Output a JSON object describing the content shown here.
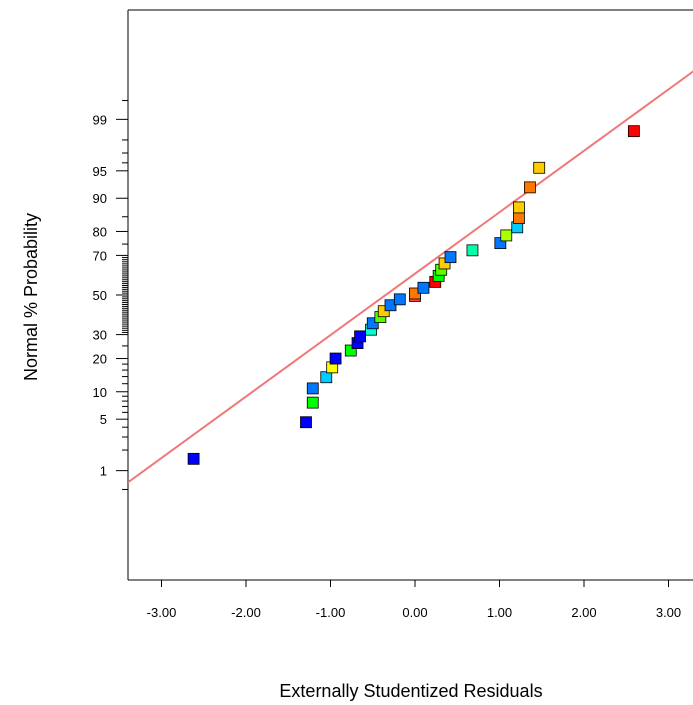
{
  "chart_data": {
    "type": "scatter",
    "title": "",
    "xlabel": "Externally Studentized Residuals",
    "ylabel": "Normal % Probability",
    "xlim": [
      -3.4,
      3.3
    ],
    "x_ticks": [
      {
        "value": -3,
        "label": "-3.00"
      },
      {
        "value": -2,
        "label": "-2.00"
      },
      {
        "value": -1,
        "label": "-1.00"
      },
      {
        "value": 0,
        "label": "0.00"
      },
      {
        "value": 1,
        "label": "1.00"
      },
      {
        "value": 2,
        "label": "2.00"
      },
      {
        "value": 3,
        "label": "3.00"
      }
    ],
    "y_scale": "normal-probability",
    "ylim": [
      0.2,
      99.94
    ],
    "y_ticks": [
      {
        "value": 1,
        "label": "1"
      },
      {
        "value": 5,
        "label": "5"
      },
      {
        "value": 10,
        "label": "10"
      },
      {
        "value": 20,
        "label": "20"
      },
      {
        "value": 30,
        "label": "30"
      },
      {
        "value": 50,
        "label": "50"
      },
      {
        "value": 70,
        "label": "70"
      },
      {
        "value": 80,
        "label": "80"
      },
      {
        "value": 90,
        "label": "90"
      },
      {
        "value": 95,
        "label": "95"
      },
      {
        "value": 99,
        "label": "99"
      }
    ],
    "reference_line": {
      "color": "#f07878",
      "x": [
        -3.4,
        3.3
      ],
      "y": [
        0.65,
        99.85
      ]
    },
    "marker": "square",
    "points": [
      {
        "x": -2.62,
        "y": 1.5,
        "color": "#0000ff"
      },
      {
        "x": -1.29,
        "y": 4.6,
        "color": "#0000ff"
      },
      {
        "x": -1.21,
        "y": 7.7,
        "color": "#00ff00"
      },
      {
        "x": -1.21,
        "y": 10.8,
        "color": "#0077ff"
      },
      {
        "x": -1.05,
        "y": 13.8,
        "color": "#00ccff"
      },
      {
        "x": -0.98,
        "y": 16.9,
        "color": "#ffff00"
      },
      {
        "x": -0.94,
        "y": 20.0,
        "color": "#0000ff"
      },
      {
        "x": -0.76,
        "y": 23.1,
        "color": "#00ff00"
      },
      {
        "x": -0.68,
        "y": 26.2,
        "color": "#0000ff"
      },
      {
        "x": -0.65,
        "y": 29.2,
        "color": "#0000ff"
      },
      {
        "x": -0.52,
        "y": 32.3,
        "color": "#00ffcc"
      },
      {
        "x": -0.5,
        "y": 35.4,
        "color": "#0077ff"
      },
      {
        "x": -0.41,
        "y": 38.5,
        "color": "#55ff00"
      },
      {
        "x": -0.37,
        "y": 41.5,
        "color": "#ffcc00"
      },
      {
        "x": -0.29,
        "y": 44.6,
        "color": "#0077ff"
      },
      {
        "x": -0.18,
        "y": 47.7,
        "color": "#0077ff"
      },
      {
        "x": 0.0,
        "y": 49.5,
        "color": "#ff4444"
      },
      {
        "x": 0.0,
        "y": 50.8,
        "color": "#ff7700"
      },
      {
        "x": 0.1,
        "y": 53.8,
        "color": "#0077ff"
      },
      {
        "x": 0.24,
        "y": 56.9,
        "color": "#ff0000"
      },
      {
        "x": 0.28,
        "y": 60.0,
        "color": "#00ff00"
      },
      {
        "x": 0.31,
        "y": 63.1,
        "color": "#55ff00"
      },
      {
        "x": 0.35,
        "y": 66.2,
        "color": "#ffcc00"
      },
      {
        "x": 0.42,
        "y": 69.2,
        "color": "#0077ff"
      },
      {
        "x": 0.68,
        "y": 72.3,
        "color": "#00ffaa"
      },
      {
        "x": 1.01,
        "y": 75.4,
        "color": "#0077ff"
      },
      {
        "x": 1.08,
        "y": 78.5,
        "color": "#aaff00"
      },
      {
        "x": 1.21,
        "y": 81.5,
        "color": "#00ccff"
      },
      {
        "x": 1.23,
        "y": 84.6,
        "color": "#ff7700"
      },
      {
        "x": 1.23,
        "y": 87.7,
        "color": "#ffcc00"
      },
      {
        "x": 1.36,
        "y": 92.3,
        "color": "#ff7700"
      },
      {
        "x": 1.47,
        "y": 95.4,
        "color": "#ffcc00"
      },
      {
        "x": 2.59,
        "y": 98.5,
        "color": "#ff0000"
      }
    ]
  }
}
